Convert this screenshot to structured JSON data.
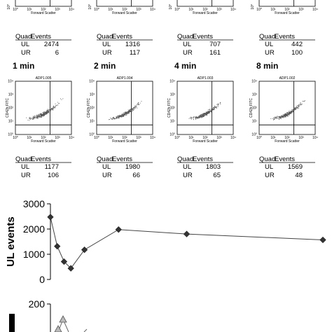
{
  "panels": [
    {
      "label": "",
      "sample": "",
      "ul": "2474",
      "ur": "6"
    },
    {
      "label": "",
      "sample": "",
      "ul": "1316",
      "ur": "117"
    },
    {
      "label": "",
      "sample": "",
      "ul": "707",
      "ur": "161"
    },
    {
      "label": "",
      "sample": "",
      "ul": "442",
      "ur": "100"
    },
    {
      "label": "1 min",
      "sample": "ADP1.005",
      "ul": "1177",
      "ur": "106"
    },
    {
      "label": "2 min",
      "sample": "ADP1.004",
      "ul": "1980",
      "ur": "66"
    },
    {
      "label": "4 min",
      "sample": "ADP1.003",
      "ul": "1803",
      "ur": "65"
    },
    {
      "label": "8 min",
      "sample": "ADP1.002",
      "ul": "1569",
      "ur": "48"
    }
  ],
  "table_headers": {
    "quad": "Quad",
    "events": "Events"
  },
  "quad_names": {
    "ul": "UL",
    "ur": "UR"
  },
  "flow_axes": {
    "x_label": "Forward Scatter",
    "y_label": "CD42b FITC"
  },
  "chart_data": [
    {
      "type": "line",
      "ylabel": "UL events",
      "xlabel": "",
      "ylim": [
        0,
        3000
      ],
      "yticks": [
        0,
        1000,
        2000,
        3000
      ],
      "marker": "diamond",
      "series": [
        {
          "values": [
            {
              "x": 0,
              "y": 2474
            },
            {
              "x": 1,
              "y": 1316
            },
            {
              "x": 2,
              "y": 707
            },
            {
              "x": 3,
              "y": 442
            },
            {
              "x": 5,
              "y": 1177
            },
            {
              "x": 10,
              "y": 1980
            },
            {
              "x": 20,
              "y": 1803
            },
            {
              "x": 40,
              "y": 1569
            }
          ]
        }
      ]
    },
    {
      "type": "line",
      "ylabel": "",
      "xlabel": "",
      "ylim": [
        0,
        200
      ],
      "yticks": [
        200
      ],
      "marker": "triangle",
      "series": []
    }
  ]
}
